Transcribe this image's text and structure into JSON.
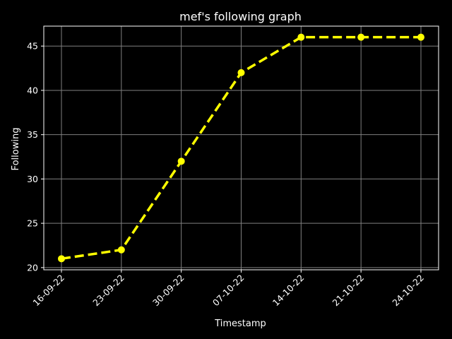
{
  "chart_data": {
    "type": "line",
    "title": "mef's following graph",
    "xlabel": "Timestamp",
    "ylabel": "Following",
    "categories": [
      "16-09-22",
      "23-09-22",
      "30-09-22",
      "07-10-22",
      "14-10-22",
      "21-10-22",
      "24-10-22"
    ],
    "values": [
      21,
      22,
      32,
      42,
      46,
      46,
      46
    ],
    "ylim": [
      19.75,
      47.25
    ],
    "yticks": [
      20,
      25,
      30,
      35,
      40,
      45
    ],
    "grid": true,
    "line_style": "dashed",
    "marker": "circle",
    "colors": {
      "background": "#000000",
      "line": "#ffff00",
      "grid": "#7f7f7f",
      "axes": "#ffffff",
      "text": "#ffffff"
    }
  }
}
